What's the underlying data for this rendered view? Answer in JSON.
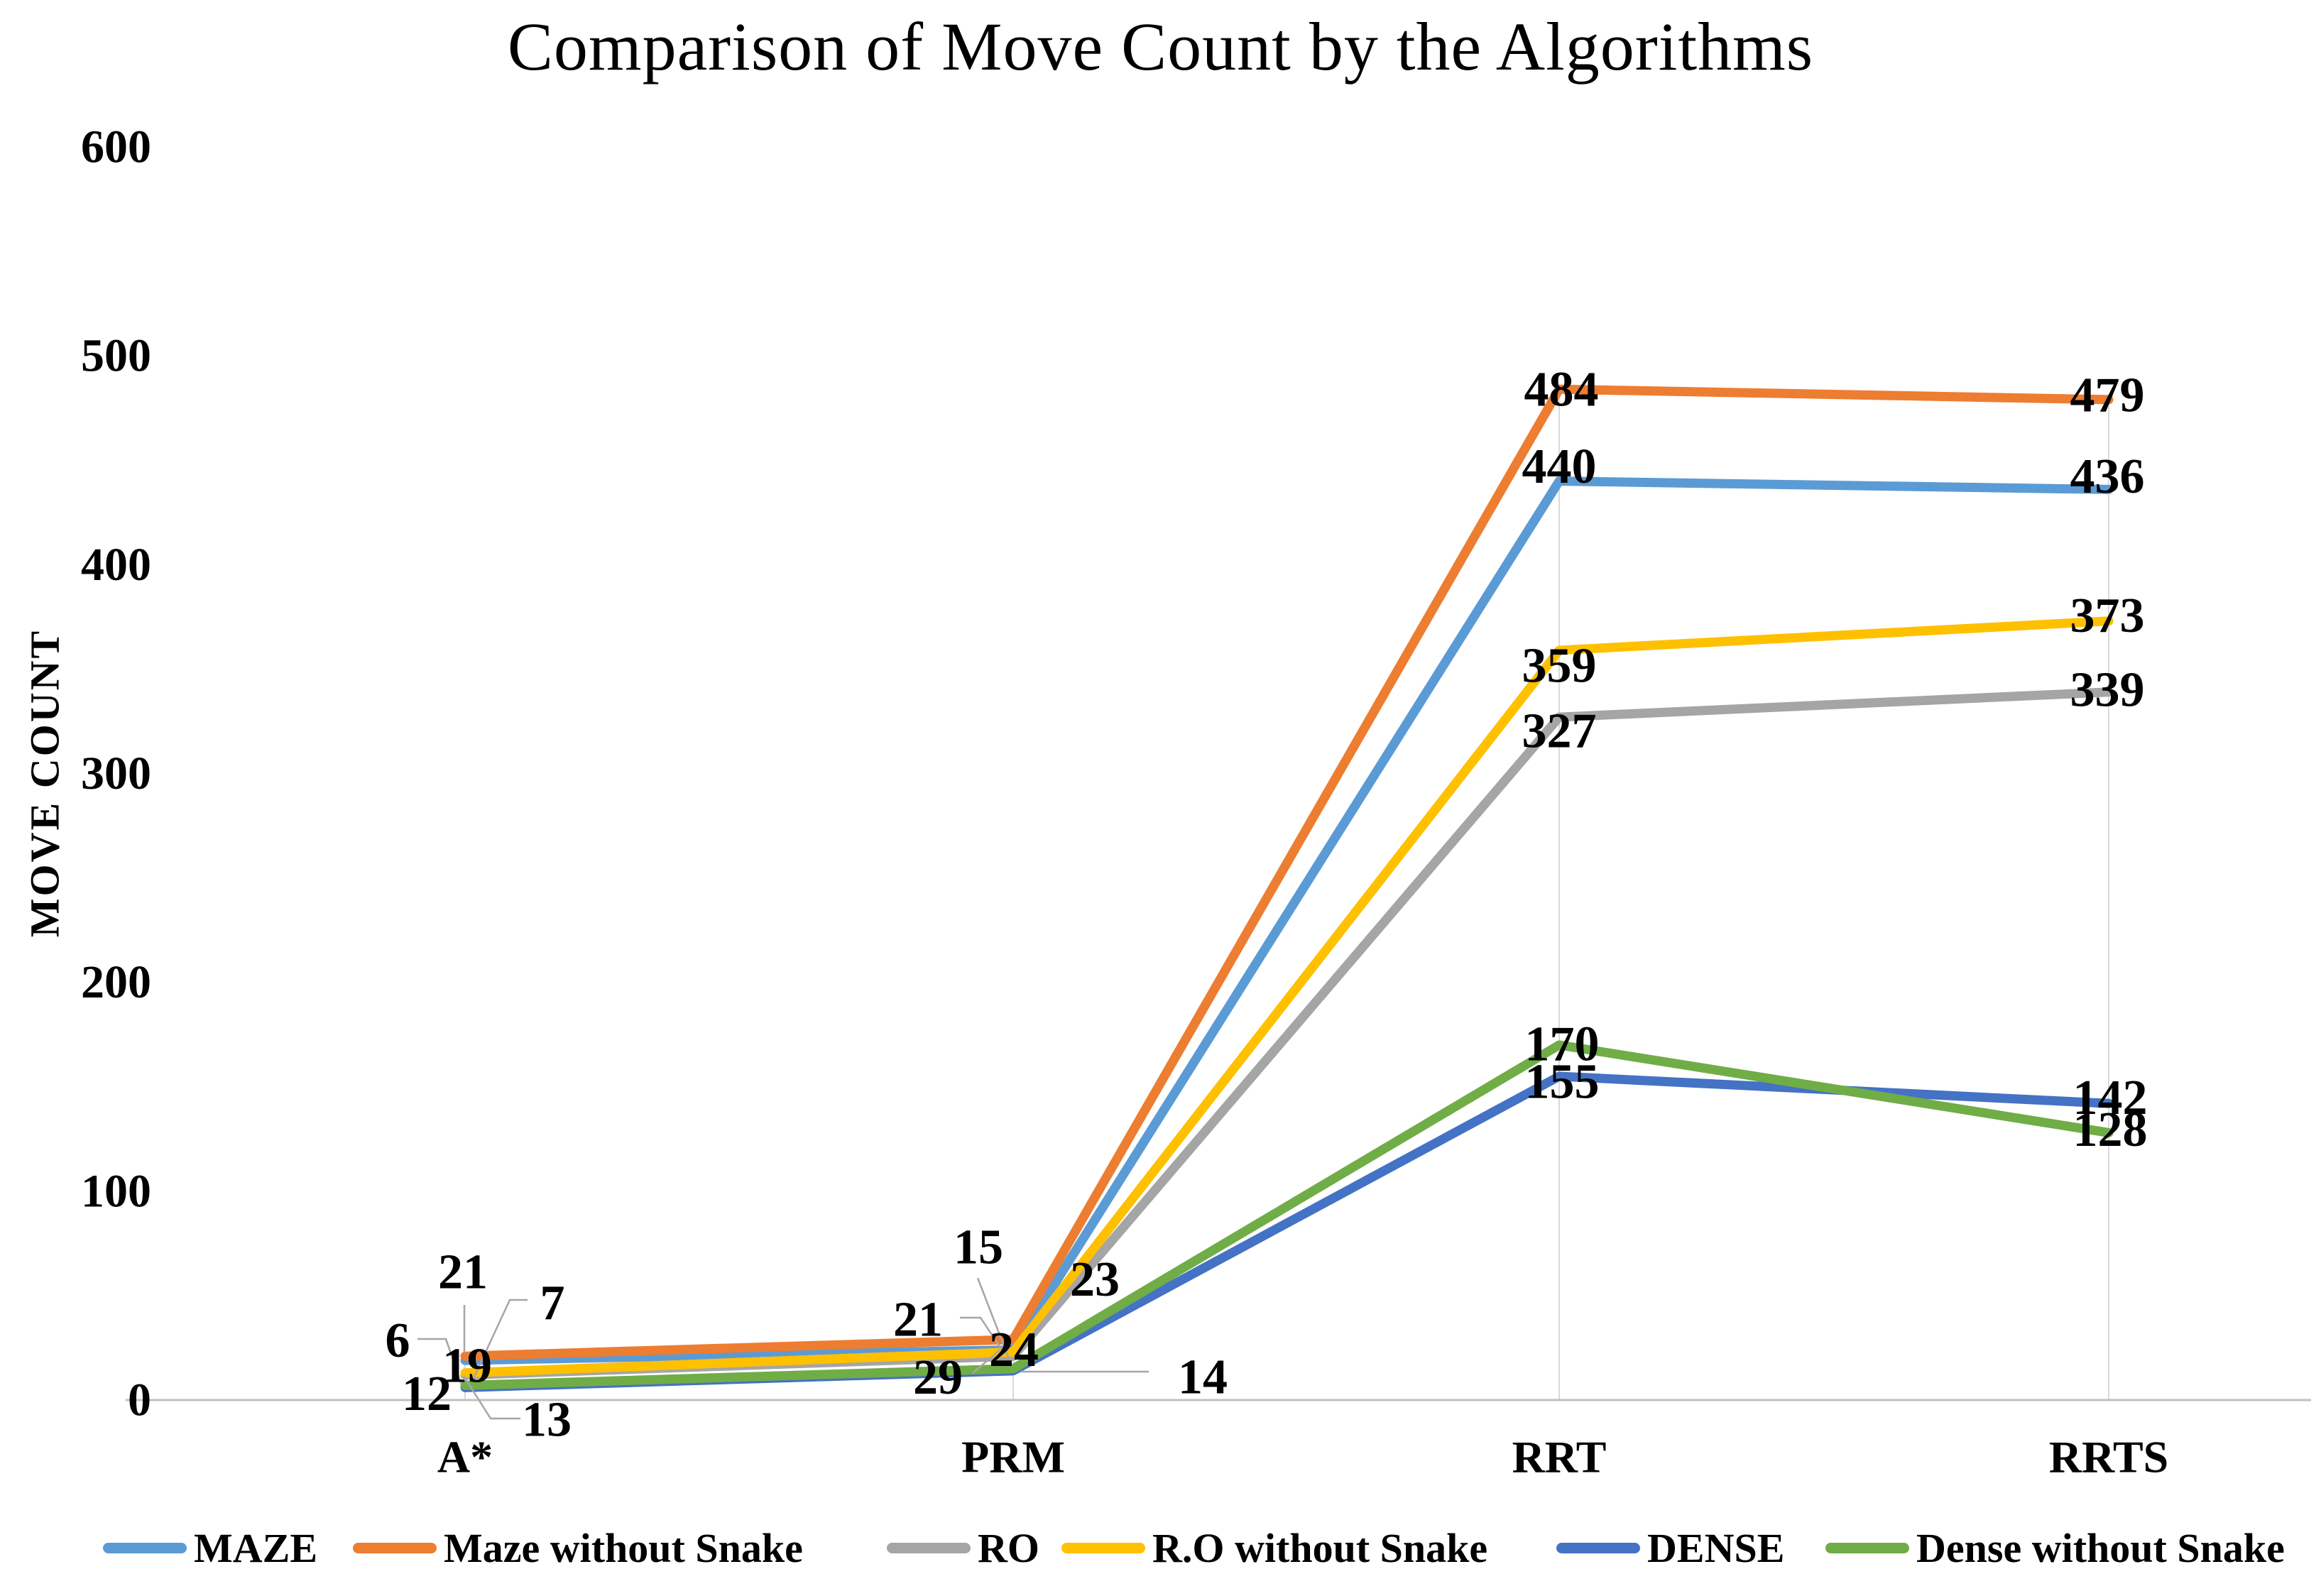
{
  "title": "Comparison of Move Count by the Algorithms",
  "y_axis": {
    "label": "MOVE COUNT",
    "ticks": [
      600,
      500,
      400,
      300,
      200,
      100,
      0
    ]
  },
  "x_axis": {
    "categories": [
      "A*",
      "PRM",
      "RRT",
      "RRTS"
    ]
  },
  "chart_data": {
    "type": "line",
    "categories": [
      "A*",
      "PRM",
      "RRT",
      "RRTS"
    ],
    "series": [
      {
        "name": "MAZE",
        "color": "#5B9BD5",
        "values": [
          19,
          24,
          440,
          436
        ]
      },
      {
        "name": "Maze without Snake",
        "color": "#ED7D31",
        "values": [
          21,
          29,
          484,
          479
        ]
      },
      {
        "name": "RO",
        "color": "#A5A5A5",
        "values": [
          12,
          21,
          327,
          339
        ]
      },
      {
        "name": "R.O without Snake",
        "color": "#FFC000",
        "values": [
          13,
          23,
          359,
          373
        ]
      },
      {
        "name": "DENSE",
        "color": "#4472C4",
        "values": [
          6,
          14,
          155,
          142
        ]
      },
      {
        "name": "Dense without Snake",
        "color": "#70AD47",
        "values": [
          7,
          15,
          170,
          128
        ]
      }
    ],
    "title": "Comparison of Move Count by the Algorithms",
    "xlabel": "",
    "ylabel": "MOVE COUNT",
    "ylim": [
      0,
      600
    ],
    "grid": "vertical drop lines from top point to axis at each category",
    "legend_position": "bottom",
    "data_labels": true
  },
  "colors": {
    "axis_line": "#C0C0C0",
    "drop_line": "#D9D9D9",
    "leader_line": "#A6A6A6",
    "text": "#000000",
    "background": "#FFFFFF"
  }
}
